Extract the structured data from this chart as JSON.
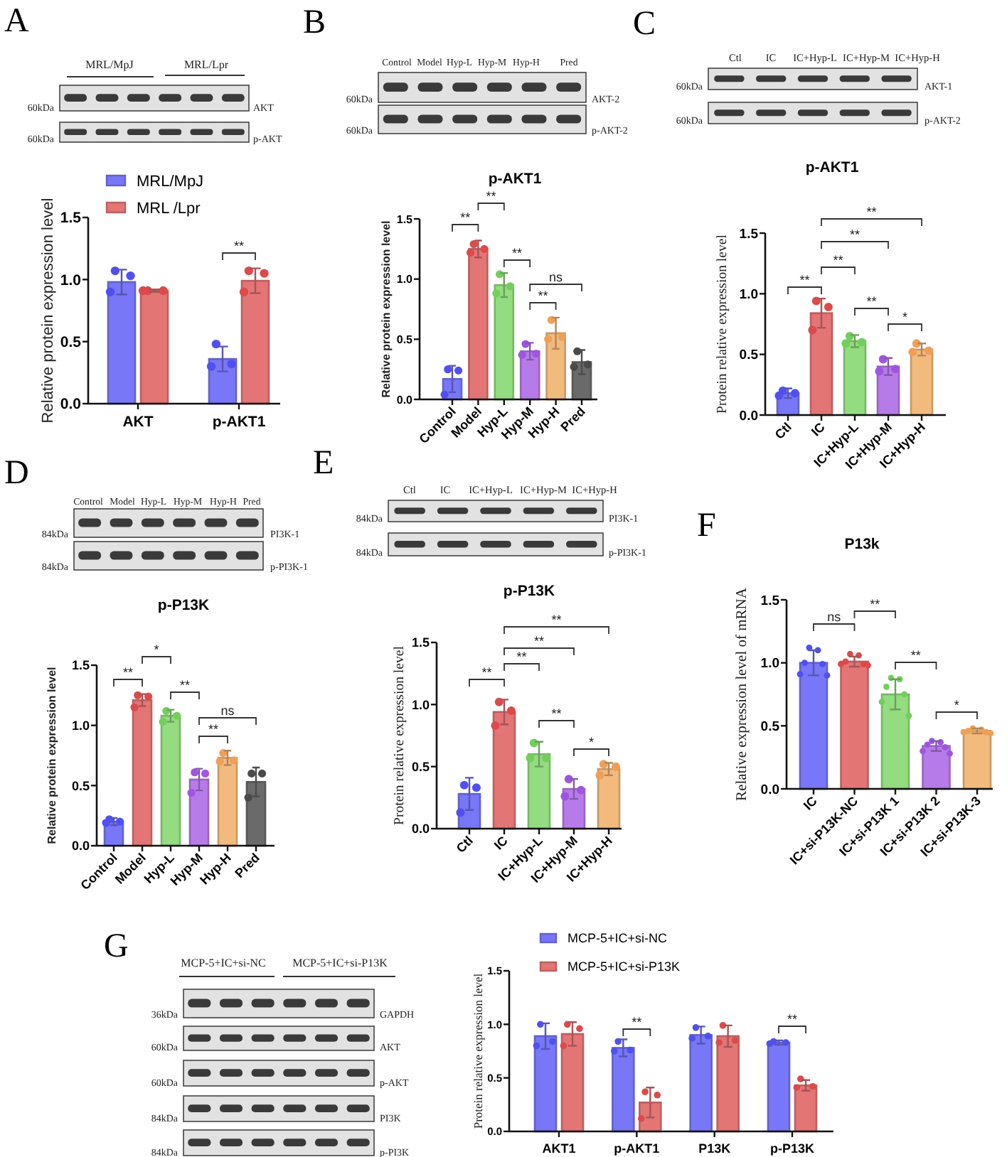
{
  "chart_data": [
    {
      "type": "bar",
      "ylabel": "Relative protein expression level",
      "categories": [
        "AKT",
        "p-AKT1"
      ],
      "series": [
        {
          "name": "MRL/MpJ",
          "color": "#7777f7",
          "values": [
            0.98,
            0.36
          ],
          "errors": [
            0.1,
            0.1
          ]
        },
        {
          "name": "MRL /Lpr",
          "color": "#e37575",
          "values": [
            0.91,
            0.99
          ],
          "errors": [
            0.01,
            0.1
          ]
        },
        {
          "type": "scatter",
          "color": "#5050f0",
          "x": [
            "AKT",
            "AKT",
            "AKT",
            "p-AKT1",
            "p-AKT1",
            "p-AKT1"
          ],
          "values": [
            1.07,
            1.03,
            0.9,
            0.48,
            0.32,
            0.3
          ]
        },
        {
          "type": "scatter",
          "color": "#dd4a4a",
          "x": [
            "AKT",
            "AKT",
            "AKT",
            "p-AKT1",
            "p-AKT1",
            "p-AKT1"
          ],
          "values": [
            0.91,
            0.91,
            0.91,
            1.07,
            1.05,
            0.9
          ]
        }
      ],
      "ylim": [
        0,
        1.5
      ],
      "yticks": [
        {
          "value": 0,
          "label": "0.0"
        },
        {
          "value": 0.5,
          "label": "0.5"
        },
        {
          "value": 1,
          "label": "1.0"
        },
        {
          "value": 1.5,
          "label": "1.5"
        }
      ],
      "legend": "top",
      "annotations": [
        "A",
        "MRL/MpJ",
        "MRL/Lpr",
        "60kDa",
        "60kDa",
        "AKT",
        "p-AKT",
        "**"
      ]
    },
    {
      "type": "bar",
      "title": "p-AKT1",
      "ylabel": "Relative protein expression level",
      "categories": [
        "Control",
        "Model",
        "Hyp-L",
        "Hyp-M",
        "Hyp-H",
        "Pred"
      ],
      "series": [
        {
          "colors": [
            "#7777f7",
            "#e37575",
            "#93dc7f",
            "#b77be9",
            "#f2ba7c",
            "#6a6a6a"
          ],
          "values": [
            0.17,
            1.25,
            0.95,
            0.4,
            0.55,
            0.31
          ],
          "errors": [
            0.11,
            0.07,
            0.1,
            0.07,
            0.13,
            0.1
          ]
        },
        {
          "type": "scatter",
          "x": [
            "Control",
            "Control",
            "Control",
            "Model",
            "Model",
            "Model",
            "Hyp-L",
            "Hyp-L",
            "Hyp-L",
            "Hyp-M",
            "Hyp-M",
            "Hyp-M",
            "Hyp-H",
            "Hyp-H",
            "Hyp-H",
            "Pred",
            "Pred",
            "Pred"
          ],
          "values": [
            0.25,
            0.24,
            0.04,
            1.29,
            1.25,
            1.22,
            1.04,
            0.94,
            0.88,
            0.46,
            0.38,
            0.37,
            0.66,
            0.52,
            0.5,
            0.4,
            0.29,
            0.27
          ],
          "colors": [
            "#5050f0",
            "#5050f0",
            "#5050f0",
            "#dd4a4a",
            "#dd4a4a",
            "#dd4a4a",
            "#72cf5c",
            "#72cf5c",
            "#72cf5c",
            "#9f55e0",
            "#9f55e0",
            "#9f55e0",
            "#eea056",
            "#eea056",
            "#eea056",
            "#4a4a4a",
            "#4a4a4a",
            "#4a4a4a"
          ]
        }
      ],
      "ylim": [
        0,
        1.5
      ],
      "yticks": [
        {
          "value": 0,
          "label": "0.0"
        },
        {
          "value": 0.5,
          "label": "0.5"
        },
        {
          "value": 1,
          "label": "1.0"
        },
        {
          "value": 1.5,
          "label": "1.5"
        }
      ],
      "annotations": [
        "B",
        "Control",
        "Model",
        "Hyp-L",
        "Hyp-M",
        "Hyp-H",
        "Pred",
        "60kDa",
        "60kDa",
        "AKT-2",
        "p-AKT-2",
        "**",
        "**",
        "**",
        "ns",
        "**"
      ]
    },
    {
      "type": "bar",
      "title": "p-AKT1",
      "ylabel": "Protein relative expression level",
      "categories": [
        "Ctl",
        "IC",
        "IC+Hyp-L",
        "IC+Hyp-M",
        "IC+Hyp-H"
      ],
      "series": [
        {
          "colors": [
            "#7777f7",
            "#e37575",
            "#93dc7f",
            "#b77be9",
            "#f2ba7c"
          ],
          "values": [
            0.18,
            0.84,
            0.61,
            0.4,
            0.54
          ],
          "errors": [
            0.04,
            0.12,
            0.05,
            0.07,
            0.05
          ]
        },
        {
          "type": "scatter",
          "x": [
            "Ctl",
            "Ctl",
            "Ctl",
            "IC",
            "IC",
            "IC",
            "IC+Hyp-L",
            "IC+Hyp-L",
            "IC+Hyp-L",
            "IC+Hyp-M",
            "IC+Hyp-M",
            "IC+Hyp-M",
            "IC+Hyp-H",
            "IC+Hyp-H",
            "IC+Hyp-H"
          ],
          "values": [
            0.2,
            0.18,
            0.16,
            0.94,
            0.89,
            0.7,
            0.65,
            0.6,
            0.59,
            0.46,
            0.38,
            0.36,
            0.59,
            0.53,
            0.52
          ],
          "colors": [
            "#5050f0",
            "#5050f0",
            "#5050f0",
            "#dd4a4a",
            "#dd4a4a",
            "#dd4a4a",
            "#72cf5c",
            "#72cf5c",
            "#72cf5c",
            "#9f55e0",
            "#9f55e0",
            "#9f55e0",
            "#eea056",
            "#eea056",
            "#eea056"
          ]
        }
      ],
      "ylim": [
        0,
        1.5
      ],
      "yticks": [
        {
          "value": 0,
          "label": "0.0"
        },
        {
          "value": 0.5,
          "label": "0.5"
        },
        {
          "value": 1,
          "label": "1.0"
        },
        {
          "value": 1.5,
          "label": "1.5"
        }
      ],
      "annotations": [
        "C",
        "Ctl",
        "IC",
        "IC+Hyp-L",
        "IC+Hyp-M",
        "IC+Hyp-H",
        "60kDa",
        "60kDa",
        "AKT-1",
        "p-AKT-2",
        "**",
        "**",
        "**",
        "**",
        "**",
        "*"
      ]
    },
    {
      "type": "bar",
      "title": "p-P13K",
      "ylabel": "Relative protein expression level",
      "categories": [
        "Control",
        "Model",
        "Hyp-L",
        "Hyp-M",
        "Hyp-H",
        "Pred"
      ],
      "series": [
        {
          "colors": [
            "#7777f7",
            "#e37575",
            "#93dc7f",
            "#b77be9",
            "#f2ba7c",
            "#6a6a6a"
          ],
          "values": [
            0.2,
            1.21,
            1.08,
            0.55,
            0.73,
            0.53
          ],
          "errors": [
            0.03,
            0.05,
            0.05,
            0.09,
            0.06,
            0.12
          ]
        },
        {
          "type": "scatter",
          "x": [
            "Control",
            "Control",
            "Control",
            "Model",
            "Model",
            "Model",
            "Hyp-L",
            "Hyp-L",
            "Hyp-L",
            "Hyp-M",
            "Hyp-M",
            "Hyp-M",
            "Hyp-H",
            "Hyp-H",
            "Hyp-H",
            "Pred",
            "Pred",
            "Pred"
          ],
          "values": [
            0.22,
            0.2,
            0.19,
            1.25,
            1.24,
            1.15,
            1.12,
            1.08,
            1.03,
            0.61,
            0.6,
            0.44,
            0.77,
            0.71,
            0.7,
            0.6,
            0.6,
            0.4
          ],
          "colors": [
            "#5050f0",
            "#5050f0",
            "#5050f0",
            "#dd4a4a",
            "#dd4a4a",
            "#dd4a4a",
            "#72cf5c",
            "#72cf5c",
            "#72cf5c",
            "#9f55e0",
            "#9f55e0",
            "#9f55e0",
            "#eea056",
            "#eea056",
            "#eea056",
            "#4a4a4a",
            "#4a4a4a",
            "#4a4a4a"
          ]
        }
      ],
      "ylim": [
        0,
        1.5
      ],
      "yticks": [
        {
          "value": 0,
          "label": "0.0"
        },
        {
          "value": 0.5,
          "label": "0.5"
        },
        {
          "value": 1,
          "label": "1.0"
        },
        {
          "value": 1.5,
          "label": "1.5"
        }
      ],
      "annotations": [
        "D",
        "Control",
        "Model",
        "Hyp-L",
        "Hyp-M",
        "Hyp-H",
        "Pred",
        "84kDa",
        "84kDa",
        "PI3K-1",
        "p-PI3K-1",
        "**",
        "*",
        "**",
        "ns",
        "**"
      ]
    },
    {
      "type": "bar",
      "title": "p-P13K",
      "ylabel": "Protein relative expression level",
      "categories": [
        "Ctl",
        "IC",
        "IC+Hyp-L",
        "IC+Hyp-M",
        "IC+Hyp-H"
      ],
      "series": [
        {
          "colors": [
            "#7777f7",
            "#e37575",
            "#93dc7f",
            "#b77be9",
            "#f2ba7c"
          ],
          "values": [
            0.28,
            0.94,
            0.6,
            0.32,
            0.48
          ],
          "errors": [
            0.13,
            0.1,
            0.1,
            0.08,
            0.05
          ]
        },
        {
          "type": "scatter",
          "x": [
            "Ctl",
            "Ctl",
            "Ctl",
            "IC",
            "IC",
            "IC",
            "IC+Hyp-L",
            "IC+Hyp-L",
            "IC+Hyp-L",
            "IC+Hyp-M",
            "IC+Hyp-M",
            "IC+Hyp-M",
            "IC+Hyp-H",
            "IC+Hyp-H",
            "IC+Hyp-H"
          ],
          "values": [
            0.35,
            0.33,
            0.13,
            1.02,
            0.95,
            0.83,
            0.69,
            0.57,
            0.57,
            0.4,
            0.31,
            0.26,
            0.52,
            0.5,
            0.43
          ],
          "colors": [
            "#5050f0",
            "#5050f0",
            "#5050f0",
            "#dd4a4a",
            "#dd4a4a",
            "#dd4a4a",
            "#72cf5c",
            "#72cf5c",
            "#72cf5c",
            "#9f55e0",
            "#9f55e0",
            "#9f55e0",
            "#eea056",
            "#eea056",
            "#eea056"
          ]
        }
      ],
      "ylim": [
        0,
        1.5
      ],
      "yticks": [
        {
          "value": 0,
          "label": "0.0"
        },
        {
          "value": 0.5,
          "label": "0.5"
        },
        {
          "value": 1,
          "label": "1.0"
        },
        {
          "value": 1.5,
          "label": "1.5"
        }
      ],
      "annotations": [
        "E",
        "Ctl",
        "IC",
        "IC+Hyp-L",
        "IC+Hyp-M",
        "IC+Hyp-H",
        "84kDa",
        "84kDa",
        "PI3K-1",
        "p-PI3K-1",
        "**",
        "**",
        "**",
        "**",
        "**",
        "*"
      ]
    },
    {
      "type": "bar",
      "title": "P13k",
      "ylabel": "Relative expression level of mRNA",
      "categories": [
        "IC",
        "IC+si-P13K-NC",
        "IC+si-P13K 1",
        "IC+si-P13K 2",
        "IC+si-P13K-3"
      ],
      "series": [
        {
          "colors": [
            "#7777f7",
            "#e37575",
            "#93dc7f",
            "#b77be9",
            "#f2ba7c"
          ],
          "values": [
            1.0,
            1.01,
            0.75,
            0.34,
            0.46
          ],
          "errors": [
            0.1,
            0.04,
            0.12,
            0.04,
            0.02
          ]
        },
        {
          "type": "scatter",
          "x": [
            "IC",
            "IC",
            "IC",
            "IC",
            "IC",
            "IC",
            "IC+si-P13K-NC",
            "IC+si-P13K-NC",
            "IC+si-P13K-NC",
            "IC+si-P13K-NC",
            "IC+si-P13K-NC",
            "IC+si-P13K-NC",
            "IC+si-P13K 1",
            "IC+si-P13K 1",
            "IC+si-P13K 1",
            "IC+si-P13K 1",
            "IC+si-P13K 1",
            "IC+si-P13K 1",
            "IC+si-P13K 2",
            "IC+si-P13K 2",
            "IC+si-P13K 2",
            "IC+si-P13K 2",
            "IC+si-P13K 2",
            "IC+si-P13K 2",
            "IC+si-P13K-3",
            "IC+si-P13K-3",
            "IC+si-P13K-3",
            "IC+si-P13K-3",
            "IC+si-P13K-3",
            "IC+si-P13K-3"
          ],
          "values": [
            1.12,
            1.1,
            1.0,
            0.99,
            0.91,
            0.9,
            1.07,
            1.06,
            1.01,
            0.99,
            0.99,
            0.98,
            0.88,
            0.87,
            0.81,
            0.75,
            0.69,
            0.58,
            0.38,
            0.37,
            0.35,
            0.33,
            0.3,
            0.28,
            0.48,
            0.47,
            0.46,
            0.45,
            0.45,
            0.44
          ],
          "colors": [
            "#5050f0",
            "#5050f0",
            "#5050f0",
            "#5050f0",
            "#5050f0",
            "#5050f0",
            "#dd4a4a",
            "#dd4a4a",
            "#dd4a4a",
            "#dd4a4a",
            "#dd4a4a",
            "#dd4a4a",
            "#72cf5c",
            "#72cf5c",
            "#72cf5c",
            "#72cf5c",
            "#72cf5c",
            "#72cf5c",
            "#9f55e0",
            "#9f55e0",
            "#9f55e0",
            "#9f55e0",
            "#9f55e0",
            "#9f55e0",
            "#eea056",
            "#eea056",
            "#eea056",
            "#eea056",
            "#eea056",
            "#eea056"
          ]
        }
      ],
      "ylim": [
        0,
        1.5
      ],
      "yticks": [
        {
          "value": 0,
          "label": "0.0"
        },
        {
          "value": 0.5,
          "label": "0.5"
        },
        {
          "value": 1,
          "label": "1.0"
        },
        {
          "value": 1.5,
          "label": "1.5"
        }
      ],
      "annotations": [
        "F",
        "ns",
        "**",
        "**",
        "*"
      ]
    },
    {
      "type": "bar",
      "ylabel": "Protein relative expression level",
      "categories": [
        "AKT1",
        "p-AKT1",
        "P13K",
        "p-P13K"
      ],
      "series": [
        {
          "name": "MCP-5+IC+si-NC",
          "color": "#7777f7",
          "values": [
            0.89,
            0.78,
            0.9,
            0.83
          ],
          "errors": [
            0.12,
            0.08,
            0.08,
            0.02
          ]
        },
        {
          "name": "MCP-5+IC+si-P13K",
          "color": "#e37575",
          "values": [
            0.91,
            0.27,
            0.89,
            0.43
          ],
          "errors": [
            0.11,
            0.14,
            0.1,
            0.05
          ]
        },
        {
          "type": "scatter",
          "color": "#5050f0",
          "x": [
            "AKT1",
            "AKT1",
            "AKT1",
            "p-AKT1",
            "p-AKT1",
            "p-AKT1",
            "P13K",
            "P13K",
            "P13K",
            "p-P13K",
            "p-P13K",
            "p-P13K"
          ],
          "values": [
            1.0,
            0.84,
            0.8,
            0.84,
            0.76,
            0.75,
            0.97,
            0.89,
            0.87,
            0.84,
            0.83,
            0.82
          ]
        },
        {
          "type": "scatter",
          "color": "#dd4a4a",
          "x": [
            "AKT1",
            "AKT1",
            "AKT1",
            "p-AKT1",
            "p-AKT1",
            "p-AKT1",
            "P13K",
            "P13K",
            "P13K",
            "p-P13K",
            "p-P13K",
            "p-P13K"
          ],
          "values": [
            1.0,
            0.96,
            0.8,
            0.37,
            0.34,
            0.12,
            0.99,
            0.85,
            0.83,
            0.49,
            0.42,
            0.41
          ]
        }
      ],
      "ylim": [
        0,
        1.5
      ],
      "yticks": [
        {
          "value": 0,
          "label": "0.0"
        },
        {
          "value": 0.5,
          "label": "0.5"
        },
        {
          "value": 1,
          "label": "1.0"
        },
        {
          "value": 1.5,
          "label": "1.5"
        }
      ],
      "legend": "top",
      "annotations": [
        "G",
        "MCP-5+IC+si-NC",
        "MCP-5+IC+si-P13K",
        "36kDa",
        "60kDa",
        "60kDa",
        "84kDa",
        "84kDa",
        "GAPDH",
        "AKT",
        "p-AKT",
        "PI3K",
        "p-PI3K",
        "**",
        "**"
      ]
    }
  ]
}
